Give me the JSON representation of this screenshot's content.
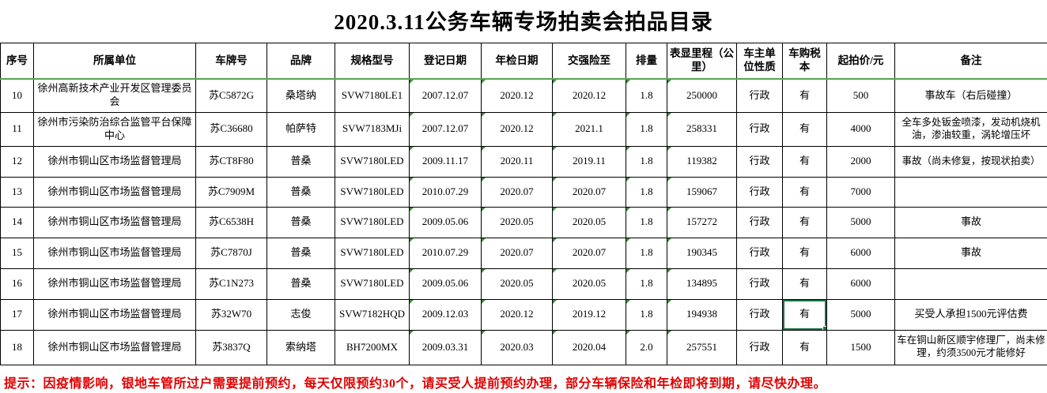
{
  "title": "2020.3.11公务车辆专场拍卖会拍品目录",
  "columns": [
    "序号",
    "所属单位",
    "车牌号",
    "品牌",
    "规格型号",
    "登记日期",
    "年检日期",
    "交强险至",
    "排量",
    "表显里程（公里）",
    "车主单位性质",
    "车购税本",
    "起拍价/元",
    "备注"
  ],
  "rows": [
    {
      "no": "10",
      "unit": "徐州高新技术产业开发区管理委员会",
      "plate": "苏C5872G",
      "brand": "桑塔纳",
      "model": "SVW7180LE1",
      "reg": "2007.12.07",
      "insp": "2020.12",
      "ins": "2020.12",
      "disp": "1.8",
      "km": "250000",
      "owner": "行政",
      "tax": "有",
      "price": "500",
      "remark": "事故车（右后碰撞）"
    },
    {
      "no": "11",
      "unit": "徐州市污染防治综合监管平台保障中心",
      "plate": "苏C36680",
      "brand": "帕萨特",
      "model": "SVW7183MJi",
      "reg": "2007.12.07",
      "insp": "2020.12",
      "ins": "2021.1",
      "disp": "1.8",
      "km": "258331",
      "owner": "行政",
      "tax": "有",
      "price": "4000",
      "remark": "全车多处钣金喷漆，发动机烧机油，渗油较重，涡轮增压坏"
    },
    {
      "no": "12",
      "unit": "徐州市铜山区市场监督管理局",
      "plate": "苏CT8F80",
      "brand": "普桑",
      "model": "SVW7180LED",
      "reg": "2009.11.17",
      "insp": "2020.11",
      "ins": "2019.11",
      "disp": "1.8",
      "km": "119382",
      "owner": "行政",
      "tax": "有",
      "price": "2000",
      "remark": "事故（尚未修复，按现状拍卖）"
    },
    {
      "no": "13",
      "unit": "徐州市铜山区市场监督管理局",
      "plate": "苏C7909M",
      "brand": "普桑",
      "model": "SVW7180LED",
      "reg": "2010.07.29",
      "insp": "2020.07",
      "ins": "2020.07",
      "disp": "1.8",
      "km": "159067",
      "owner": "行政",
      "tax": "有",
      "price": "7000",
      "remark": ""
    },
    {
      "no": "14",
      "unit": "徐州市铜山区市场监督管理局",
      "plate": "苏C6538H",
      "brand": "普桑",
      "model": "SVW7180LED",
      "reg": "2009.05.06",
      "insp": "2020.05",
      "ins": "2020.05",
      "disp": "1.8",
      "km": "157272",
      "owner": "行政",
      "tax": "有",
      "price": "5000",
      "remark": "事故"
    },
    {
      "no": "15",
      "unit": "徐州市铜山区市场监督管理局",
      "plate": "苏C7870J",
      "brand": "普桑",
      "model": "SVW7180LED",
      "reg": "2010.07.29",
      "insp": "2020.07",
      "ins": "2020.07",
      "disp": "1.8",
      "km": "190345",
      "owner": "行政",
      "tax": "有",
      "price": "6000",
      "remark": "事故"
    },
    {
      "no": "16",
      "unit": "徐州市铜山区市场监督管理局",
      "plate": "苏C1N273",
      "brand": "普桑",
      "model": "SVW7180LED",
      "reg": "2009.05.06",
      "insp": "2020.05",
      "ins": "2020.05",
      "disp": "1.8",
      "km": "134895",
      "owner": "行政",
      "tax": "有",
      "price": "6000",
      "remark": ""
    },
    {
      "no": "17",
      "unit": "徐州市铜山区市场监督管理局",
      "plate": "苏32W70",
      "brand": "志俊",
      "model": "SVW7182HQD",
      "reg": "2009.12.03",
      "insp": "2020.12",
      "ins": "2019.12",
      "disp": "1.8",
      "km": "194938",
      "owner": "行政",
      "tax": "有",
      "price": "5000",
      "remark": "买受人承担1500元评估费"
    },
    {
      "no": "18",
      "unit": "徐州市铜山区市场监督管理局",
      "plate": "苏3837Q",
      "brand": "索纳塔",
      "model": "BH7200MX",
      "reg": "2009.03.31",
      "insp": "2020.03",
      "ins": "2020.04",
      "disp": "2.0",
      "km": "257551",
      "owner": "行政",
      "tax": "有",
      "price": "1500",
      "remark": "车在铜山新区顺宇修理厂，尚未修理，约须3500元才能修好"
    }
  ],
  "note": "提示：因疫情影响，银地车管所过户需要提前预约，每天仅限预约30个，请买受人提前预约办理，部分车辆保险和年检即将到期，请尽快办理。",
  "selection": {
    "row": "17",
    "column": "车购税本",
    "value": "有"
  },
  "icons": {
    "error_indicator": "green-corner-triangle",
    "selection_handle": "green-fill-handle-square"
  },
  "colors": {
    "note_red": "#e00000",
    "selection_green": "#1f7244",
    "indicator_green": "#3d8c3d",
    "header_underline_green": "#55a555",
    "grid": "#000000",
    "background": "#ffffff"
  }
}
